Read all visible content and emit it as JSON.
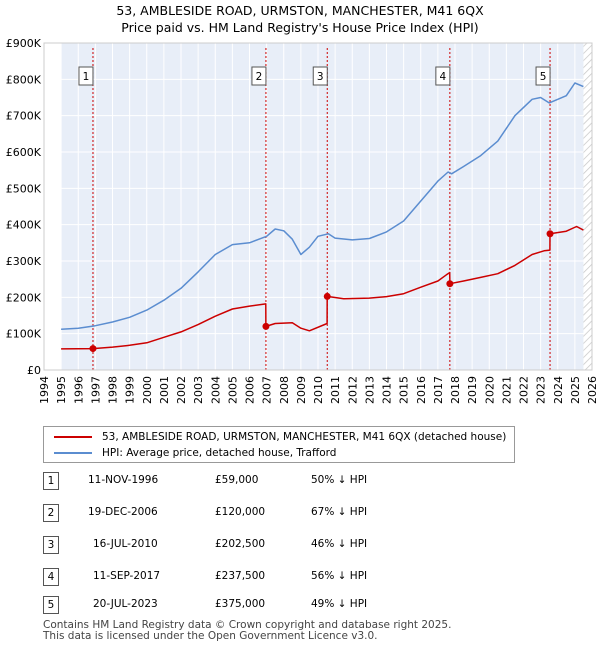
{
  "title_line1": "53, AMBLESIDE ROAD, URMSTON, MANCHESTER, M41 6QX",
  "title_line2": "Price paid vs. HM Land Registry's House Price Index (HPI)",
  "chart_data": {
    "type": "line",
    "title": "53, AMBLESIDE ROAD, URMSTON, MANCHESTER, M41 6QX — Price paid vs. HM Land Registry's House Price Index (HPI)",
    "xlim": [
      1994,
      2026
    ],
    "ylim": [
      0,
      900000
    ],
    "x_ticks": [
      1994,
      1995,
      1996,
      1997,
      1998,
      1999,
      2000,
      2001,
      2002,
      2003,
      2004,
      2005,
      2006,
      2007,
      2008,
      2009,
      2010,
      2011,
      2012,
      2013,
      2014,
      2015,
      2016,
      2017,
      2018,
      2019,
      2020,
      2021,
      2022,
      2023,
      2024,
      2025,
      2026
    ],
    "y_ticks": [
      {
        "value": 0,
        "label": "£0"
      },
      {
        "value": 100000,
        "label": "£100K"
      },
      {
        "value": 200000,
        "label": "£200K"
      },
      {
        "value": 300000,
        "label": "£300K"
      },
      {
        "value": 400000,
        "label": "£400K"
      },
      {
        "value": 500000,
        "label": "£500K"
      },
      {
        "value": 600000,
        "label": "£600K"
      },
      {
        "value": 700000,
        "label": "£700K"
      },
      {
        "value": 800000,
        "label": "£800K"
      },
      {
        "value": 900000,
        "label": "£900K"
      }
    ],
    "data_range": [
      1995.0,
      2025.5
    ],
    "series": [
      {
        "name": "53, AMBLESIDE ROAD, URMSTON, MANCHESTER, M41 6QX (detached house)",
        "color": "#cc0000",
        "points": [
          [
            1995,
            58000
          ],
          [
            1996.86,
            59000
          ],
          [
            1998,
            63000
          ],
          [
            1999,
            68000
          ],
          [
            2000,
            75000
          ],
          [
            2001,
            90000
          ],
          [
            2002,
            105000
          ],
          [
            2003,
            125000
          ],
          [
            2004,
            148000
          ],
          [
            2005,
            168000
          ],
          [
            2006,
            176000
          ],
          [
            2006.95,
            182000
          ],
          [
            2006.96,
            120000
          ],
          [
            2007.5,
            128000
          ],
          [
            2008.5,
            130000
          ],
          [
            2009,
            115000
          ],
          [
            2009.5,
            108000
          ],
          [
            2010.53,
            128000
          ],
          [
            2010.54,
            202500
          ],
          [
            2011.5,
            196000
          ],
          [
            2013,
            198000
          ],
          [
            2014,
            202000
          ],
          [
            2015,
            210000
          ],
          [
            2016,
            228000
          ],
          [
            2017,
            245000
          ],
          [
            2017.5,
            262000
          ],
          [
            2017.69,
            268000
          ],
          [
            2017.7,
            237500
          ],
          [
            2018.5,
            245000
          ],
          [
            2019.5,
            255000
          ],
          [
            2020.5,
            265000
          ],
          [
            2021.5,
            288000
          ],
          [
            2022.5,
            318000
          ],
          [
            2023.2,
            328000
          ],
          [
            2023.54,
            330000
          ],
          [
            2023.55,
            375000
          ],
          [
            2024.5,
            382000
          ],
          [
            2025.1,
            395000
          ],
          [
            2025.5,
            385000
          ]
        ]
      },
      {
        "name": "HPI: Average price, detached house, Trafford",
        "color": "#5b8dd0",
        "points": [
          [
            1995,
            112000
          ],
          [
            1996,
            115000
          ],
          [
            1997,
            122000
          ],
          [
            1998,
            132000
          ],
          [
            1999,
            145000
          ],
          [
            2000,
            165000
          ],
          [
            2001,
            192000
          ],
          [
            2002,
            225000
          ],
          [
            2003,
            270000
          ],
          [
            2004,
            318000
          ],
          [
            2005,
            345000
          ],
          [
            2006,
            350000
          ],
          [
            2007,
            368000
          ],
          [
            2007.5,
            388000
          ],
          [
            2008,
            383000
          ],
          [
            2008.5,
            360000
          ],
          [
            2009,
            318000
          ],
          [
            2009.5,
            338000
          ],
          [
            2010,
            368000
          ],
          [
            2010.6,
            375000
          ],
          [
            2011,
            363000
          ],
          [
            2012,
            358000
          ],
          [
            2013,
            362000
          ],
          [
            2014,
            380000
          ],
          [
            2015,
            410000
          ],
          [
            2016,
            465000
          ],
          [
            2017,
            520000
          ],
          [
            2017.6,
            545000
          ],
          [
            2017.8,
            540000
          ],
          [
            2018.5,
            560000
          ],
          [
            2019.5,
            590000
          ],
          [
            2020.5,
            630000
          ],
          [
            2021.5,
            700000
          ],
          [
            2022.5,
            745000
          ],
          [
            2023,
            750000
          ],
          [
            2023.5,
            735000
          ],
          [
            2024,
            745000
          ],
          [
            2024.5,
            755000
          ],
          [
            2025,
            790000
          ],
          [
            2025.5,
            780000
          ]
        ]
      }
    ],
    "annotations": [
      {
        "n": "1",
        "x": 1996.86,
        "price": 59000
      },
      {
        "n": "2",
        "x": 2006.96,
        "price": 120000
      },
      {
        "n": "3",
        "x": 2010.54,
        "price": 202500
      },
      {
        "n": "4",
        "x": 2017.7,
        "price": 237500
      },
      {
        "n": "5",
        "x": 2023.55,
        "price": 375000
      }
    ]
  },
  "legend": {
    "property_label": "53, AMBLESIDE ROAD, URMSTON, MANCHESTER, M41 6QX (detached house)",
    "hpi_label": "HPI: Average price, detached house, Trafford",
    "property_color": "#cc0000",
    "hpi_color": "#5b8dd0"
  },
  "sales": [
    {
      "n": "1",
      "date": "11-NOV-1996",
      "price": "£59,000",
      "hpi": "50% ↓ HPI"
    },
    {
      "n": "2",
      "date": "19-DEC-2006",
      "price": "£120,000",
      "hpi": "67% ↓ HPI"
    },
    {
      "n": "3",
      "date": "16-JUL-2010",
      "price": "£202,500",
      "hpi": "46% ↓ HPI"
    },
    {
      "n": "4",
      "date": "11-SEP-2017",
      "price": "£237,500",
      "hpi": "56% ↓ HPI"
    },
    {
      "n": "5",
      "date": "20-JUL-2023",
      "price": "£375,000",
      "hpi": "49% ↓ HPI"
    }
  ],
  "footer_line1": "Contains HM Land Registry data © Crown copyright and database right 2025.",
  "footer_line2": "This data is licensed under the Open Government Licence v3.0."
}
